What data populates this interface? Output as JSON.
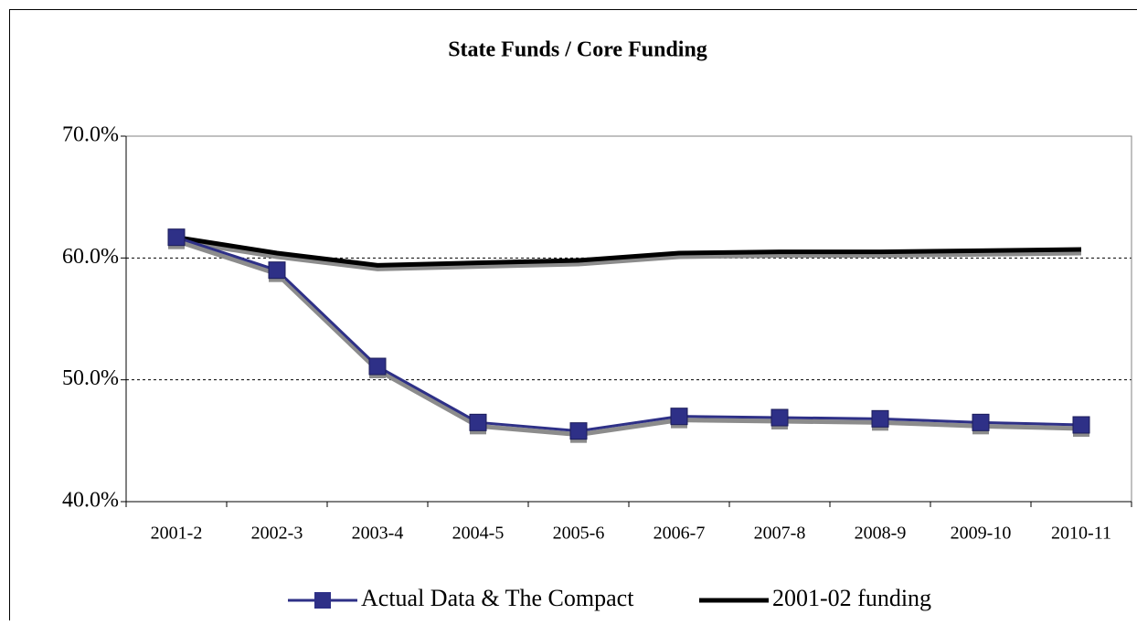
{
  "chart_data": {
    "type": "line",
    "title": "State Funds / Core Funding",
    "categories": [
      "2001-2",
      "2002-3",
      "2003-4",
      "2004-5",
      "2005-6",
      "2006-7",
      "2007-8",
      "2008-9",
      "2009-10",
      "2010-11"
    ],
    "series": [
      {
        "name": "Actual Data & The Compact",
        "color": "#2e3087",
        "marker": "square",
        "values": [
          61.7,
          59.0,
          51.1,
          46.5,
          45.8,
          47.0,
          46.9,
          46.8,
          46.5,
          46.3
        ]
      },
      {
        "name": "2001-02 funding",
        "color": "#000000",
        "values": [
          61.7,
          60.4,
          59.4,
          59.6,
          59.8,
          60.4,
          60.5,
          60.5,
          60.6,
          60.7
        ]
      }
    ],
    "ylim": [
      40,
      70
    ],
    "yticks": [
      {
        "value": 40,
        "label": "40.0%"
      },
      {
        "value": 50,
        "label": "50.0%"
      },
      {
        "value": 60,
        "label": "60.0%"
      },
      {
        "value": 70,
        "label": "70.0%"
      }
    ],
    "grid": true,
    "legend": "bottom"
  }
}
